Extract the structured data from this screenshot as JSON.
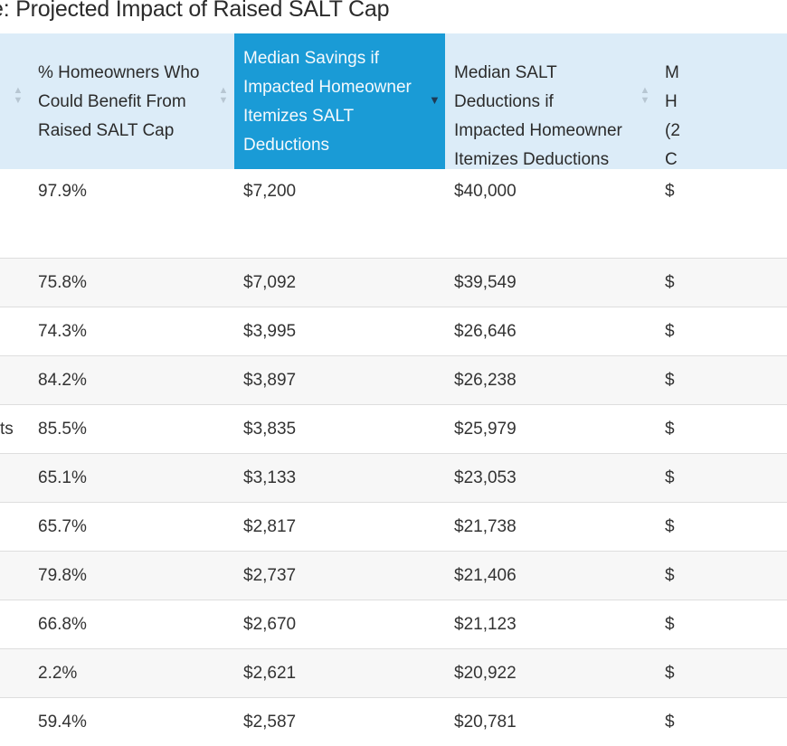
{
  "title": "e: Projected Impact of Raised SALT Cap",
  "columns": [
    {
      "label": "",
      "sort": "both"
    },
    {
      "label": "% Homeowners Who Could Benefit From Raised SALT Cap",
      "sort": "both"
    },
    {
      "label": "Median Savings if Impacted Homeowner Itemizes SALT Deductions",
      "sort": "desc"
    },
    {
      "label": "Median SALT Deductions if Impacted Homeowner Itemizes Deductions",
      "sort": "both"
    },
    {
      "label": "M\nH\n(2\nC",
      "sort": "none"
    }
  ],
  "rows": [
    {
      "c0": "",
      "c1": "97.9%",
      "c2": "$7,200",
      "c3": "$40,000",
      "c4": "$"
    },
    {
      "c0": "",
      "c1": "75.8%",
      "c2": "$7,092",
      "c3": "$39,549",
      "c4": "$"
    },
    {
      "c0": "",
      "c1": "74.3%",
      "c2": "$3,995",
      "c3": "$26,646",
      "c4": "$"
    },
    {
      "c0": "",
      "c1": "84.2%",
      "c2": "$3,897",
      "c3": "$26,238",
      "c4": "$"
    },
    {
      "c0": "ts",
      "c1": "85.5%",
      "c2": "$3,835",
      "c3": "$25,979",
      "c4": "$"
    },
    {
      "c0": "",
      "c1": "65.1%",
      "c2": "$3,133",
      "c3": "$23,053",
      "c4": "$"
    },
    {
      "c0": "",
      "c1": "65.7%",
      "c2": "$2,817",
      "c3": "$21,738",
      "c4": "$"
    },
    {
      "c0": "",
      "c1": "79.8%",
      "c2": "$2,737",
      "c3": "$21,406",
      "c4": "$"
    },
    {
      "c0": "",
      "c1": "66.8%",
      "c2": "$2,670",
      "c3": "$21,123",
      "c4": "$"
    },
    {
      "c0": "",
      "c1": "2.2%",
      "c2": "$2,621",
      "c3": "$20,922",
      "c4": "$"
    },
    {
      "c0": "",
      "c1": "59.4%",
      "c2": "$2,587",
      "c3": "$20,781",
      "c4": "$"
    }
  ],
  "colors": {
    "header_bg": "#dcecf8",
    "active_header_bg": "#1a9bd6",
    "row_alt_bg": "#f7f7f7"
  },
  "icons": {
    "sort_both": "sort-both-icon",
    "sort_desc": "sort-desc-icon"
  }
}
